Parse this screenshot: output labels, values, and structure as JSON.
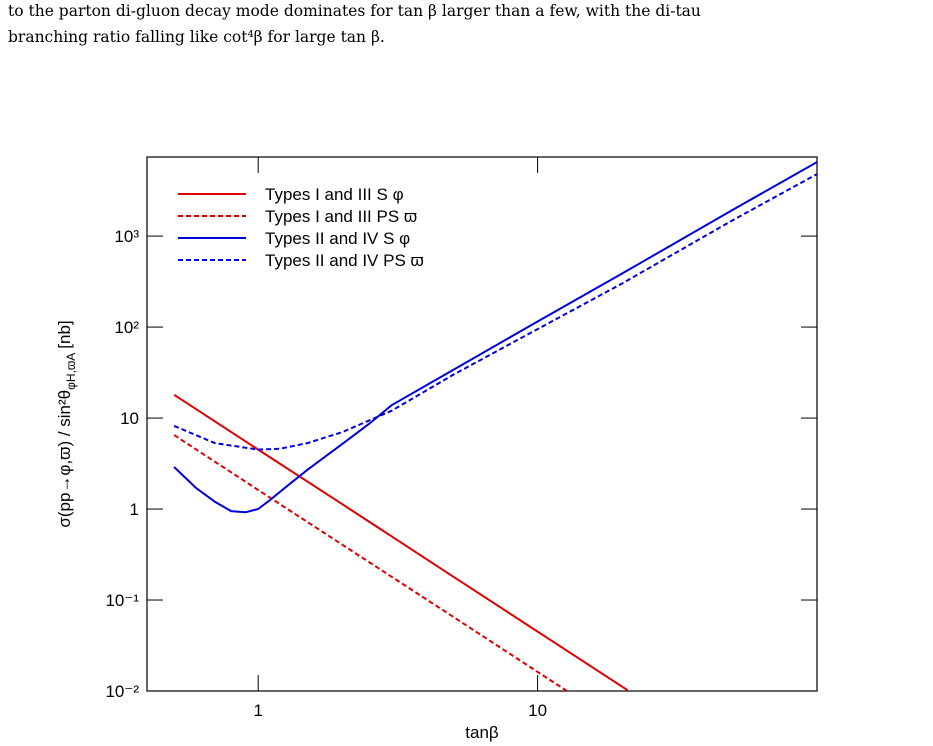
{
  "text": {
    "lines": [
      "to the parton di-gluon decay mode dominates for tan β larger than a few, with the di-tau",
      "branching ratio falling like cot⁴β for large tan β."
    ]
  },
  "chart_data": {
    "type": "line",
    "xlabel": "tanβ",
    "ylabel": "σ(pp→φ,ϖ) / sin²θ",
    "ylabel_subscript": "φH,ϖA",
    "ylabel_unit": "[nb]",
    "xscale": "log",
    "yscale": "log",
    "xlim": [
      0.4,
      100
    ],
    "ylim": [
      0.01,
      7400
    ],
    "xticks": [
      1,
      10
    ],
    "yticks": [
      {
        "value": 0.01,
        "label": "10⁻²"
      },
      {
        "value": 0.1,
        "label": "10⁻¹"
      },
      1,
      10,
      {
        "value": 100,
        "label": "10²"
      },
      {
        "value": 1000,
        "label": "10³"
      }
    ],
    "legend": "upper left",
    "series": [
      {
        "name": "Types I and III S  φ",
        "color": "#e00000",
        "dash": false,
        "x": [
          0.5,
          1,
          2,
          5,
          10,
          21
        ],
        "values": [
          18,
          4.5,
          1.13,
          0.18,
          0.045,
          0.0102
        ]
      },
      {
        "name": "Types I and III PS  ϖ",
        "color": "#e00000",
        "dash": true,
        "x": [
          0.5,
          1,
          2,
          5,
          10,
          13
        ],
        "values": [
          6.5,
          1.62,
          0.405,
          0.065,
          0.0162,
          0.0096
        ]
      },
      {
        "name": "Types II and IV S  φ",
        "color": "#0000dd",
        "dash": false,
        "x": [
          0.5,
          0.6,
          0.7,
          0.8,
          0.9,
          1.0,
          1.1,
          1.3,
          1.5,
          2,
          2.5,
          3,
          5,
          10,
          20,
          50,
          100
        ],
        "values": [
          2.9,
          1.7,
          1.2,
          0.95,
          0.92,
          1.0,
          1.25,
          1.9,
          2.7,
          5.2,
          8.7,
          13.8,
          34,
          115,
          385,
          1950,
          6500
        ]
      },
      {
        "name": "Types II and IV PS  ϖ",
        "color": "#0000dd",
        "dash": true,
        "x": [
          0.5,
          0.7,
          1,
          1.2,
          1.5,
          2,
          3,
          5,
          10,
          20,
          50,
          100
        ],
        "values": [
          8.2,
          5.3,
          4.5,
          4.6,
          5.3,
          7,
          12,
          30,
          95,
          300,
          1500,
          4800
        ]
      }
    ]
  }
}
